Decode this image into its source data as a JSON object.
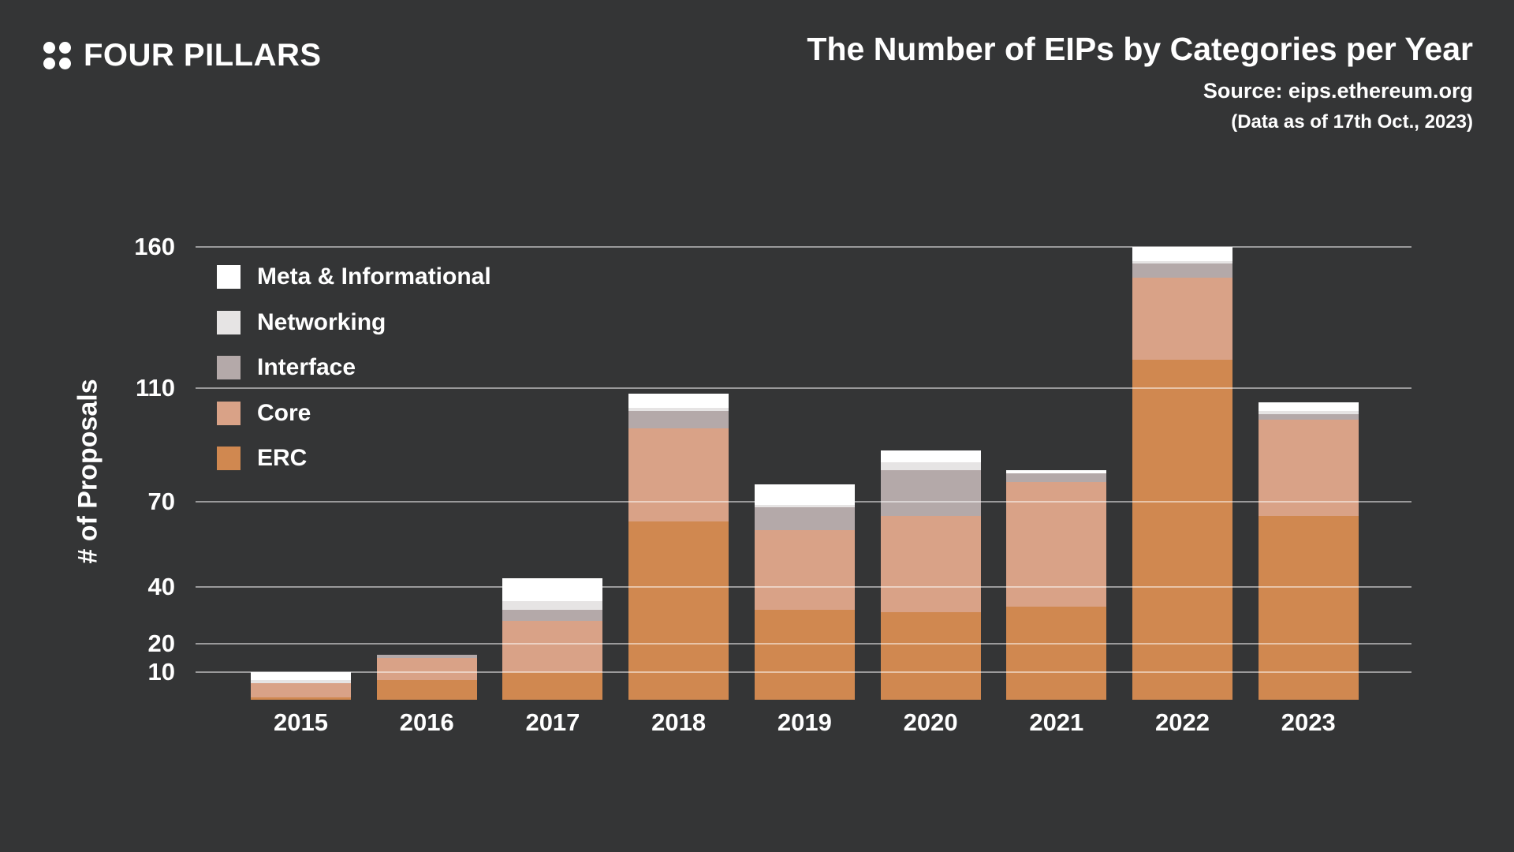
{
  "header": {
    "logo_text": "FOUR PILLARS",
    "title": "The Number of EIPs by Categories per Year",
    "source": "Source: eips.ethereum.org",
    "note": "(Data as of 17th Oct., 2023)"
  },
  "colors": {
    "background": "#343536",
    "text": "#ffffff",
    "gridline": "rgba(255,255,255,0.5)",
    "erc": "#d08850",
    "core": "#d9a287",
    "interface": "#b4a9a9",
    "networking": "#e6e4e4",
    "meta_informational": "#ffffff"
  },
  "chart_data": {
    "type": "bar",
    "stacked": true,
    "title": "The Number of EIPs by Categories per Year",
    "xlabel": "",
    "ylabel": "# of Proposals",
    "yticks": [
      160,
      110,
      70,
      40,
      20,
      10
    ],
    "ylim": [
      0,
      165
    ],
    "grid": true,
    "legend_position": "inside-top-left",
    "categories": [
      "2015",
      "2016",
      "2017",
      "2018",
      "2019",
      "2020",
      "2021",
      "2022",
      "2023"
    ],
    "series": [
      {
        "name": "ERC",
        "color": "#d08850",
        "values": [
          1,
          7,
          10,
          63,
          32,
          31,
          33,
          120,
          65
        ]
      },
      {
        "name": "Core",
        "color": "#d9a287",
        "values": [
          5,
          8,
          18,
          33,
          28,
          34,
          44,
          29,
          34
        ]
      },
      {
        "name": "Interface",
        "color": "#b4a9a9",
        "values": [
          0,
          1,
          4,
          6,
          8,
          16,
          3,
          5,
          2
        ]
      },
      {
        "name": "Networking",
        "color": "#e6e4e4",
        "values": [
          1,
          0,
          3,
          1,
          1,
          3,
          0,
          1,
          1
        ]
      },
      {
        "name": "Meta & Informational",
        "color": "#ffffff",
        "values": [
          3,
          0,
          8,
          5,
          7,
          4,
          1,
          5,
          3
        ]
      }
    ],
    "totals": [
      10,
      16,
      43,
      108,
      76,
      88,
      81,
      160,
      105
    ],
    "legend": [
      {
        "label": "Meta & Informational",
        "color": "#ffffff"
      },
      {
        "label": "Networking",
        "color": "#e6e4e4"
      },
      {
        "label": "Interface",
        "color": "#b4a9a9"
      },
      {
        "label": "Core",
        "color": "#d9a287"
      },
      {
        "label": "ERC",
        "color": "#d08850"
      }
    ]
  }
}
